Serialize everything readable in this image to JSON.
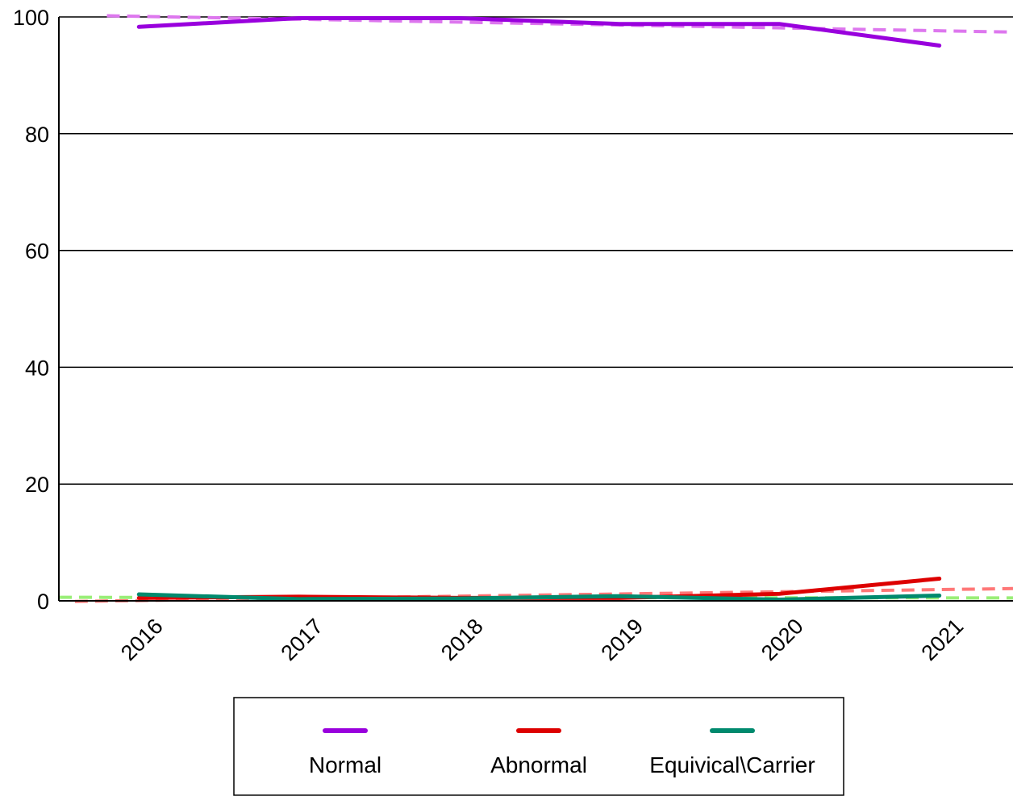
{
  "chart_data": {
    "type": "line",
    "title": "",
    "xlabel": "",
    "ylabel": "",
    "x": [
      2016,
      2017,
      2018,
      2019,
      2020,
      2021
    ],
    "xlim": [
      2015.5,
      2021.46
    ],
    "ylim": [
      0,
      100
    ],
    "yticks": [
      0,
      20,
      40,
      60,
      80,
      100
    ],
    "xtick_labels": [
      "2016",
      "2017",
      "2018",
      "2019",
      "2020",
      "2021"
    ],
    "grid": "horizontal",
    "legend_position": "bottom",
    "series": [
      {
        "name": "Normal",
        "color": "#9900dd",
        "values": [
          98.3,
          99.8,
          99.8,
          98.8,
          98.8,
          95.1
        ]
      },
      {
        "name": "Abnormal",
        "color": "#dd0000",
        "values": [
          0.5,
          0.7,
          0.5,
          0.5,
          1.2,
          3.8
        ]
      },
      {
        "name": "Equivical\\Carrier",
        "color": "#008a6e",
        "values": [
          1.1,
          0.3,
          0.4,
          0.8,
          0.2,
          0.9
        ]
      }
    ],
    "trend_lines": [
      {
        "of": "Normal",
        "color": "#dd77ee",
        "x": [
          2015.8,
          2021.46
        ],
        "values": [
          100.2,
          97.4
        ]
      },
      {
        "of": "Abnormal",
        "color": "#ff7777",
        "x": [
          2015.6,
          2021.46
        ],
        "values": [
          -0.1,
          2.1
        ]
      },
      {
        "of": "Equivical\\Carrier",
        "color": "#99ee77",
        "x": [
          2015.5,
          2021.46
        ],
        "values": [
          0.6,
          0.5
        ]
      }
    ]
  }
}
